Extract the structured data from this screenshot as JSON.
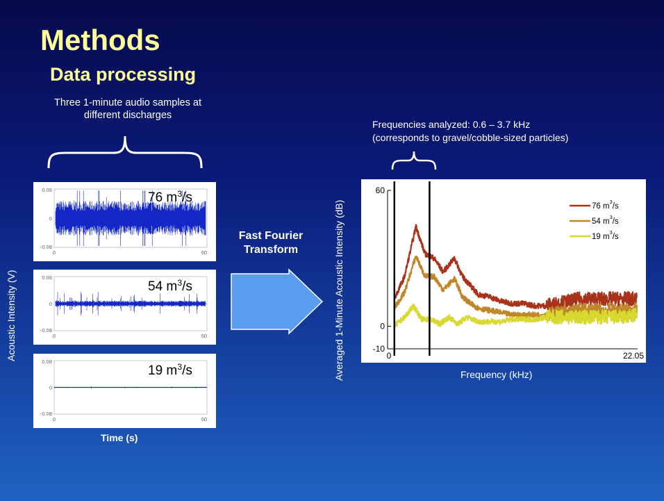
{
  "slide": {
    "title": "Methods",
    "subtitle": "Data processing",
    "samples_note_line1": "Three 1-minute audio samples at",
    "samples_note_line2": "different discharges",
    "y_label_left": "Acoustic Intensity (V)",
    "x_label_left": "Time (s)",
    "transform_line1": "Fast Fourier",
    "transform_line2": "Transform",
    "freq_note_line1": "Frequencies analyzed: 0.6 – 3.7 kHz",
    "freq_note_line2": "(corresponds to gravel/cobble-sized particles)",
    "y_label_right": "Averaged 1-Minute Acoustic Intensity (dB)",
    "x_label_right": "Frequency (kHz)"
  },
  "waveforms": [
    {
      "discharge_value": "76 m",
      "discharge_unit_sup": "3",
      "discharge_suffix": "/s",
      "amplitude_level": "high",
      "y_ticks": [
        "0.08",
        "0",
        "-0.08"
      ],
      "x_ticks": [
        "0",
        "60"
      ]
    },
    {
      "discharge_value": "54 m",
      "discharge_unit_sup": "3",
      "discharge_suffix": "/s",
      "amplitude_level": "low",
      "y_ticks": [
        "0.08",
        "0",
        "-0.08"
      ],
      "x_ticks": [
        "0",
        "60"
      ]
    },
    {
      "discharge_value": "19 m",
      "discharge_unit_sup": "3",
      "discharge_suffix": "/s",
      "amplitude_level": "flat",
      "y_ticks": [
        "0.08",
        "0",
        "-0.08"
      ],
      "x_ticks": [
        "0",
        "60"
      ]
    }
  ],
  "chart_data": {
    "type": "line",
    "xlabel": "Frequency (kHz)",
    "ylabel": "Averaged 1-Minute Acoustic Intensity (dB)",
    "xlim": [
      0,
      22.05
    ],
    "ylim": [
      -10,
      60
    ],
    "x_ticks": [
      "0",
      "22.05"
    ],
    "y_ticks": [
      "60",
      "0",
      "-10"
    ],
    "band_markers_khz": [
      0.6,
      3.7
    ],
    "legend_position": "top-right",
    "series": [
      {
        "name": "76 m³/s",
        "legend_base": "76 m",
        "legend_sup": "3",
        "legend_suffix": "/s",
        "color": "#a8321a",
        "points": [
          [
            0.6,
            12
          ],
          [
            1.5,
            22
          ],
          [
            2.5,
            44
          ],
          [
            3.3,
            32
          ],
          [
            4.1,
            30
          ],
          [
            4.9,
            24
          ],
          [
            5.9,
            30
          ],
          [
            6.6,
            22
          ],
          [
            7.3,
            18
          ],
          [
            8.0,
            14
          ],
          [
            9.0,
            13
          ],
          [
            10,
            11
          ],
          [
            11,
            10
          ],
          [
            12,
            10
          ],
          [
            13,
            9
          ],
          [
            14,
            9
          ],
          [
            15,
            10
          ],
          [
            16,
            11
          ],
          [
            17,
            12
          ],
          [
            18,
            12
          ],
          [
            19,
            12
          ],
          [
            20,
            12
          ],
          [
            21,
            12
          ],
          [
            22,
            12
          ]
        ]
      },
      {
        "name": "54 m³/s",
        "legend_base": "54 m",
        "legend_sup": "3",
        "legend_suffix": "/s",
        "color": "#c0862a",
        "points": [
          [
            0.6,
            8
          ],
          [
            1.5,
            15
          ],
          [
            2.5,
            31
          ],
          [
            3.3,
            22
          ],
          [
            4.1,
            22
          ],
          [
            4.9,
            16
          ],
          [
            5.9,
            21
          ],
          [
            6.6,
            13
          ],
          [
            7.3,
            10
          ],
          [
            8.0,
            8
          ],
          [
            9.0,
            7
          ],
          [
            10,
            6
          ],
          [
            11,
            5
          ],
          [
            12,
            5
          ],
          [
            13,
            5
          ],
          [
            14,
            5
          ],
          [
            15,
            6
          ],
          [
            16,
            6
          ],
          [
            17,
            7
          ],
          [
            18,
            7
          ],
          [
            19,
            7
          ],
          [
            20,
            7
          ],
          [
            21,
            7
          ],
          [
            22,
            7
          ]
        ]
      },
      {
        "name": "19 m³/s",
        "legend_base": "19 m",
        "legend_sup": "3",
        "legend_suffix": "/s",
        "color": "#d8d830",
        "points": [
          [
            0.6,
            0
          ],
          [
            1.5,
            4
          ],
          [
            2.3,
            9
          ],
          [
            3.0,
            3
          ],
          [
            3.8,
            3
          ],
          [
            4.6,
            1
          ],
          [
            5.4,
            4
          ],
          [
            6.2,
            1
          ],
          [
            7.0,
            4
          ],
          [
            8.0,
            2
          ],
          [
            9.0,
            2
          ],
          [
            10,
            2
          ],
          [
            11,
            3
          ],
          [
            12,
            3
          ],
          [
            13,
            3
          ],
          [
            14,
            4
          ],
          [
            15,
            4
          ],
          [
            16,
            4
          ],
          [
            17,
            4
          ],
          [
            18,
            4
          ],
          [
            19,
            4
          ],
          [
            20,
            4
          ],
          [
            21,
            4
          ],
          [
            22,
            5
          ]
        ]
      }
    ]
  },
  "colors": {
    "title": "#ffff99",
    "arrow_fill": "#5c9cf0",
    "waveform": "#1428c8"
  }
}
